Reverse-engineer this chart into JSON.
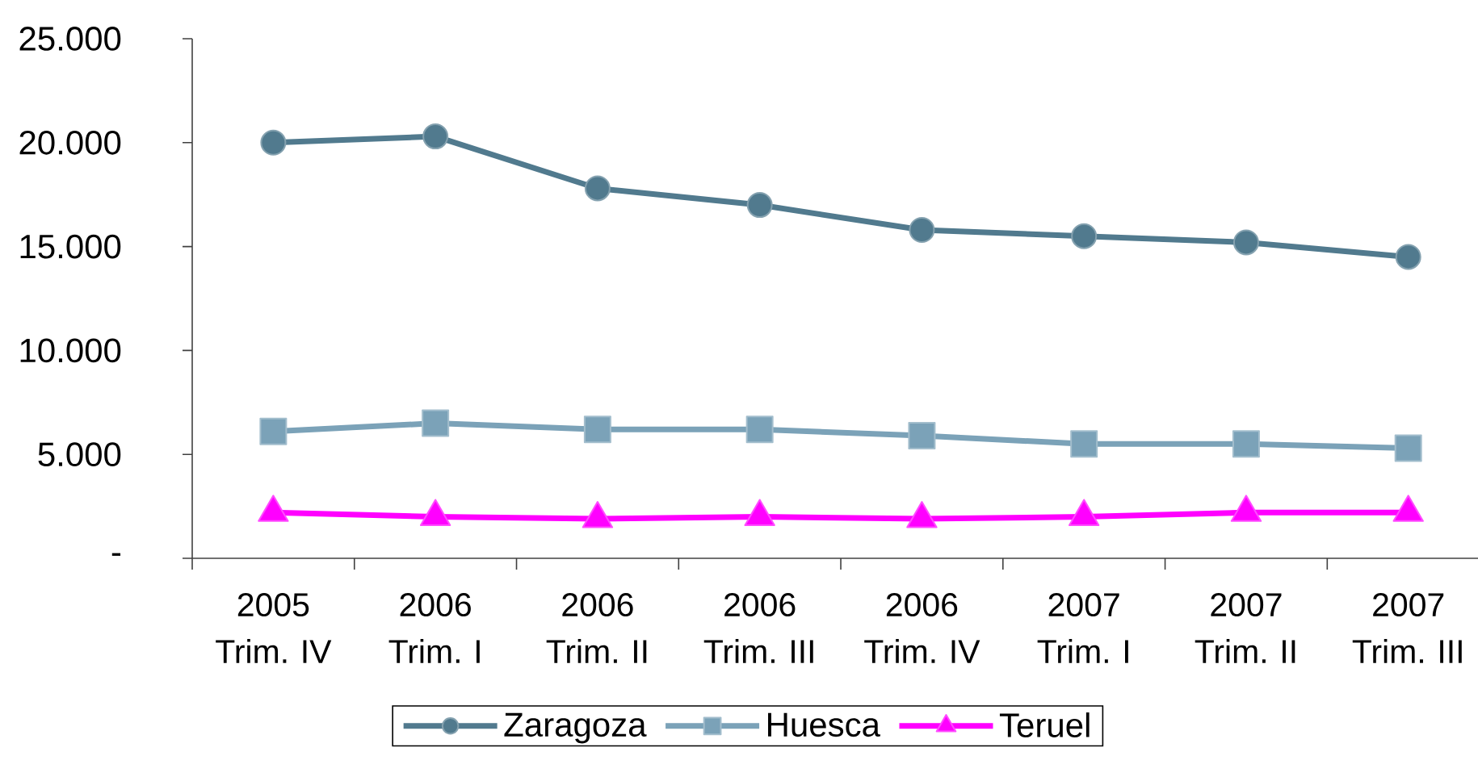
{
  "chart_data": {
    "type": "line",
    "categories": [
      "2005 Trim. IV",
      "2006 Trim. I",
      "2006 Trim. II",
      "2006 Trim. III",
      "2006 Trim. IV",
      "2007 Trim. I",
      "2007 Trim. II",
      "2007 Trim. III"
    ],
    "series": [
      {
        "name": "Zaragoza",
        "color": "#517a8e",
        "marker": "circle",
        "values": [
          20000,
          20300,
          17800,
          17000,
          15800,
          15500,
          15200,
          14500
        ]
      },
      {
        "name": "Huesca",
        "color": "#7ba2b8",
        "marker": "square",
        "values": [
          6100,
          6500,
          6200,
          6200,
          5900,
          5500,
          5500,
          5300
        ]
      },
      {
        "name": "Teruel",
        "color": "#ff00ff",
        "marker": "triangle",
        "values": [
          2200,
          2000,
          1900,
          2000,
          1900,
          2000,
          2200,
          2200
        ]
      }
    ],
    "ylim": [
      0,
      25000
    ],
    "yticks": [
      {
        "value": 0,
        "label": "-"
      },
      {
        "value": 5000,
        "label": "5.000"
      },
      {
        "value": 10000,
        "label": "10.000"
      },
      {
        "value": 15000,
        "label": "15.000"
      },
      {
        "value": 20000,
        "label": "20.000"
      },
      {
        "value": 25000,
        "label": "25.000"
      }
    ],
    "legend": "bottom",
    "line_style": "solid"
  }
}
